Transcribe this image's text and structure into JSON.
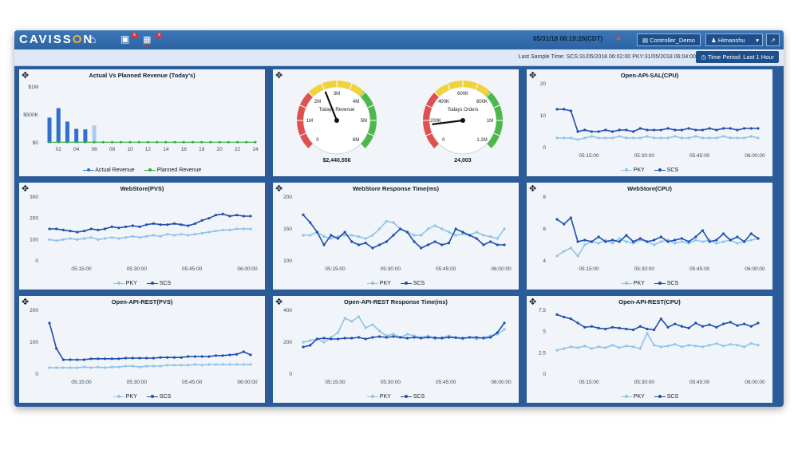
{
  "app": {
    "logo_text": "CAVISSON",
    "datetime": "05/31/18 06:19:26(CDT)"
  },
  "toolbar": {
    "controller_label": "Controller_Demo",
    "user_label": "Himanshu",
    "last_sample": "Last Sample Time: SCS:31/05/2018 06:02:00 PKY:31/05/2018 06:04:00",
    "time_period_label": "Time Period: Last 1 Hour"
  },
  "colors": {
    "pky": "#8ec4ea",
    "scs": "#1e4fb0",
    "actual": "#2f6fd0",
    "planned": "#2eaa3a",
    "gauge_red": "#e05050",
    "gauge_yellow": "#f0d23a",
    "gauge_green": "#4db84a"
  },
  "panels": {
    "p1": {
      "title": "Actual Vs Planned Revenue (Today's)",
      "legend": [
        "Actual Revenue",
        "Planned Revenue"
      ]
    },
    "p2": {
      "gauges": [
        {
          "label": "Todays Revenue",
          "value_text": "$2,440,556",
          "ticks": [
            "0",
            "1M",
            "2M",
            "3M",
            "4M",
            "5M",
            "6M"
          ],
          "fraction": 0.42
        },
        {
          "label": "Todays Orders",
          "value_text": "24,003",
          "ticks": [
            "0",
            "200K",
            "400K",
            "600K",
            "800K",
            "1M",
            "1.2M"
          ],
          "fraction": 0.14
        }
      ]
    },
    "p3": {
      "title": "Open-API-SAL(CPU)",
      "legend": [
        "PKY",
        "SCS"
      ]
    },
    "p4": {
      "title": "WebStore(PVS)",
      "legend": [
        "PKY",
        "SCS"
      ]
    },
    "p5": {
      "title": "WebStore Response Time(ms)",
      "legend": [
        "PKY",
        "SCS"
      ]
    },
    "p6": {
      "title": "WebStore(CPU)",
      "legend": [
        "PKY",
        "SCS"
      ]
    },
    "p7": {
      "title": "Open-API-REST(PVS)",
      "legend": [
        "PKY",
        "SCS"
      ]
    },
    "p8": {
      "title": "Open-API-REST Response Time(ms)",
      "legend": [
        "PKY",
        "SCS"
      ]
    },
    "p9": {
      "title": "Open-API-REST(CPU)",
      "legend": [
        "PKY",
        "SCS"
      ]
    }
  },
  "chart_data": [
    {
      "id": "p1",
      "type": "bar",
      "title": "Actual Vs Planned Revenue (Today's)",
      "categories": [
        "01",
        "02",
        "03",
        "04",
        "05",
        "06",
        "07",
        "08",
        "09",
        "10",
        "11",
        "12",
        "13",
        "14",
        "15",
        "16",
        "17",
        "18",
        "19",
        "20",
        "21",
        "22",
        "23",
        "24"
      ],
      "x_tick_labels": [
        "02",
        "04",
        "06",
        "08",
        "10",
        "12",
        "14",
        "16",
        "18",
        "20",
        "22",
        "24"
      ],
      "y_tick_labels": [
        "$0",
        "$500K",
        "$1M"
      ],
      "ylim": [
        0,
        1000000
      ],
      "series": [
        {
          "name": "Actual Revenue",
          "type": "bar",
          "values": [
            450000,
            620000,
            380000,
            250000,
            240000,
            310000,
            0,
            0,
            0,
            0,
            0,
            0,
            0,
            0,
            0,
            0,
            0,
            0,
            0,
            0,
            0,
            0,
            0,
            0
          ]
        },
        {
          "name": "Planned Revenue",
          "type": "line",
          "values": [
            10000,
            10000,
            10000,
            10000,
            10000,
            10000,
            10000,
            10000,
            10000,
            10000,
            10000,
            10000,
            10000,
            10000,
            10000,
            10000,
            10000,
            10000,
            10000,
            10000,
            10000,
            10000,
            10000,
            10000
          ]
        }
      ]
    },
    {
      "id": "p3",
      "type": "line",
      "title": "Open-API-SAL(CPU)",
      "x_tick_labels": [
        "05:15:00",
        "05:30:00",
        "05:45:00",
        "06:00:00"
      ],
      "y_tick_labels": [
        "0",
        "10",
        "20"
      ],
      "ylim": [
        0,
        20
      ],
      "series": [
        {
          "name": "PKY",
          "values": [
            3,
            3,
            3,
            2.5,
            3,
            3.5,
            3,
            3,
            3,
            3.5,
            3,
            3,
            3,
            3.5,
            3,
            3,
            3,
            3.5,
            3,
            3,
            3.5,
            3,
            3,
            3,
            3.5,
            3,
            3,
            3,
            3.5,
            3
          ]
        },
        {
          "name": "SCS",
          "values": [
            12,
            12,
            11.5,
            5,
            5.5,
            5,
            5,
            5.5,
            5,
            5.5,
            5.5,
            5,
            6,
            5.5,
            5.5,
            5.5,
            6,
            5.5,
            5.5,
            6,
            5.5,
            5.5,
            6,
            5.5,
            6,
            6,
            5.5,
            6,
            6,
            6
          ]
        }
      ]
    },
    {
      "id": "p4",
      "type": "line",
      "title": "WebStore(PVS)",
      "x_tick_labels": [
        "05:15:00",
        "05:30:00",
        "05:45:00",
        "06:00:00"
      ],
      "y_tick_labels": [
        "0",
        "100",
        "200",
        "300"
      ],
      "ylim": [
        0,
        300
      ],
      "series": [
        {
          "name": "PKY",
          "values": [
            100,
            95,
            100,
            105,
            100,
            105,
            110,
            100,
            105,
            110,
            105,
            110,
            115,
            110,
            115,
            120,
            115,
            125,
            120,
            125,
            120,
            125,
            130,
            135,
            140,
            145,
            145,
            150,
            150,
            150
          ]
        },
        {
          "name": "SCS",
          "values": [
            150,
            150,
            145,
            140,
            135,
            140,
            150,
            145,
            150,
            160,
            155,
            160,
            165,
            160,
            170,
            175,
            170,
            170,
            175,
            170,
            165,
            175,
            190,
            200,
            215,
            220,
            210,
            215,
            210,
            210
          ]
        }
      ]
    },
    {
      "id": "p5",
      "type": "line",
      "title": "WebStore Response Time(ms)",
      "x_tick_labels": [
        "05:15:00",
        "05:30:00",
        "05:45:00",
        "06:00:00"
      ],
      "y_tick_labels": [
        "100",
        "150",
        "200"
      ],
      "ylim": [
        100,
        200
      ],
      "series": [
        {
          "name": "PKY",
          "values": [
            140,
            140,
            145,
            138,
            135,
            138,
            140,
            140,
            138,
            135,
            140,
            150,
            162,
            160,
            150,
            145,
            140,
            140,
            150,
            155,
            150,
            145,
            140,
            142,
            140,
            145,
            140,
            138,
            135,
            150
          ]
        },
        {
          "name": "SCS",
          "values": [
            172,
            160,
            145,
            125,
            140,
            135,
            145,
            130,
            125,
            128,
            120,
            125,
            130,
            140,
            150,
            145,
            130,
            120,
            125,
            130,
            125,
            128,
            150,
            145,
            140,
            135,
            125,
            130,
            125,
            125
          ]
        }
      ]
    },
    {
      "id": "p6",
      "type": "line",
      "title": "WebStore(CPU)",
      "x_tick_labels": [
        "05:15:00",
        "05:30:00",
        "05:45:00",
        "06:00:00"
      ],
      "y_tick_labels": [
        "4",
        "6",
        "8"
      ],
      "ylim": [
        4,
        8
      ],
      "series": [
        {
          "name": "PKY",
          "values": [
            4.3,
            4.6,
            4.8,
            4.3,
            5.0,
            5.2,
            5.1,
            5.3,
            5.1,
            5.4,
            5.2,
            5.1,
            5.3,
            5.2,
            5.0,
            5.2,
            5.3,
            5.1,
            5.2,
            5.1,
            5.3,
            5.2,
            5.3,
            5.1,
            5.2,
            5.3,
            5.1,
            5.2,
            5.3,
            5.4
          ]
        },
        {
          "name": "SCS",
          "values": [
            6.6,
            6.3,
            6.7,
            5.2,
            5.3,
            5.2,
            5.5,
            5.2,
            5.3,
            5.2,
            5.6,
            5.2,
            5.4,
            5.2,
            5.3,
            5.5,
            5.2,
            5.3,
            5.4,
            5.2,
            5.5,
            5.9,
            5.2,
            5.3,
            5.7,
            5.3,
            5.5,
            5.2,
            5.7,
            5.4
          ]
        }
      ]
    },
    {
      "id": "p7",
      "type": "line",
      "title": "Open-API-REST(PVS)",
      "x_tick_labels": [
        "05:15:00",
        "05:30:00",
        "05:45:00",
        "06:00:00"
      ],
      "y_tick_labels": [
        "0",
        "100",
        "200"
      ],
      "ylim": [
        0,
        200
      ],
      "series": [
        {
          "name": "PKY",
          "values": [
            20,
            20,
            20,
            20,
            20,
            22,
            20,
            22,
            20,
            22,
            22,
            25,
            25,
            22,
            25,
            25,
            25,
            28,
            28,
            28,
            28,
            30,
            28,
            30,
            30,
            30,
            30,
            30,
            30,
            30
          ]
        },
        {
          "name": "SCS",
          "values": [
            160,
            80,
            45,
            45,
            45,
            45,
            48,
            48,
            48,
            48,
            48,
            50,
            50,
            50,
            50,
            50,
            52,
            52,
            52,
            52,
            55,
            55,
            55,
            55,
            58,
            58,
            60,
            62,
            70,
            60
          ]
        }
      ]
    },
    {
      "id": "p8",
      "type": "line",
      "title": "Open-API-REST Response Time(ms)",
      "x_tick_labels": [
        "05:15:00",
        "05:30:00",
        "05:45:00",
        "06:00:00"
      ],
      "y_tick_labels": [
        "0",
        "200",
        "400"
      ],
      "ylim": [
        0,
        400
      ],
      "series": [
        {
          "name": "PKY",
          "values": [
            200,
            210,
            220,
            200,
            230,
            260,
            350,
            330,
            360,
            290,
            310,
            270,
            240,
            250,
            230,
            250,
            240,
            230,
            240,
            220,
            230,
            240,
            230,
            220,
            230,
            220,
            230,
            240,
            250,
            280
          ]
        },
        {
          "name": "SCS",
          "values": [
            170,
            180,
            220,
            225,
            220,
            220,
            225,
            225,
            230,
            220,
            230,
            235,
            230,
            235,
            230,
            225,
            230,
            225,
            230,
            228,
            225,
            230,
            228,
            225,
            230,
            230,
            225,
            230,
            260,
            320
          ]
        }
      ]
    },
    {
      "id": "p9",
      "type": "line",
      "title": "Open-API-REST(CPU)",
      "x_tick_labels": [
        "05:15:00",
        "05:30:00",
        "05:45:00",
        "06:00:00"
      ],
      "y_tick_labels": [
        "0",
        "2.5",
        "5",
        "7.5"
      ],
      "ylim": [
        0,
        7.5
      ],
      "series": [
        {
          "name": "PKY",
          "values": [
            2.8,
            3.0,
            3.2,
            3.1,
            3.3,
            3.0,
            3.2,
            3.1,
            3.4,
            3.1,
            3.3,
            3.2,
            3.0,
            4.8,
            3.4,
            3.2,
            3.3,
            3.5,
            3.2,
            3.4,
            3.3,
            3.2,
            3.4,
            3.6,
            3.3,
            3.5,
            3.4,
            3.2,
            3.6,
            3.4
          ]
        },
        {
          "name": "SCS",
          "values": [
            7.0,
            6.7,
            6.5,
            6.0,
            5.5,
            5.6,
            5.4,
            5.3,
            5.5,
            5.4,
            5.3,
            5.2,
            5.6,
            5.3,
            5.2,
            6.5,
            5.5,
            5.9,
            5.6,
            5.4,
            6.0,
            5.6,
            5.8,
            5.5,
            5.9,
            6.1,
            5.7,
            5.9,
            5.6,
            6.0
          ]
        }
      ]
    }
  ]
}
